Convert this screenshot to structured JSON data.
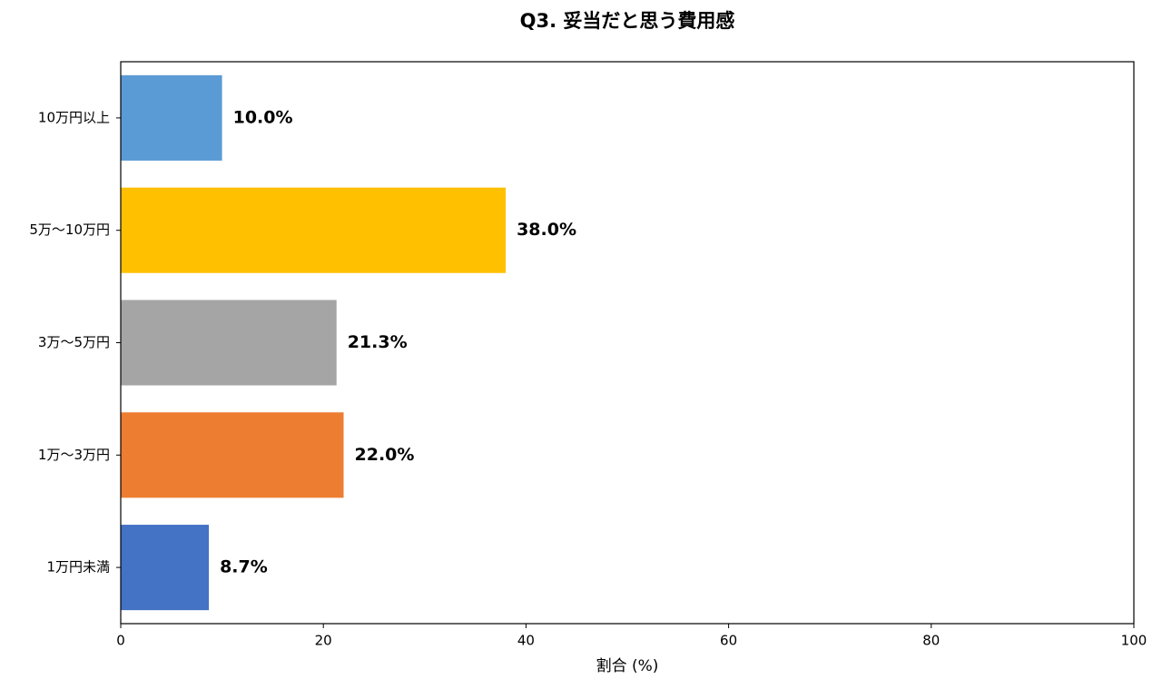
{
  "chart_data": {
    "type": "barh",
    "title": "Q3. 妥当だと思う費用感",
    "categories": [
      "10万円以上",
      "5万〜10万円",
      "3万〜5万円",
      "1万〜3万円",
      "1万円未満"
    ],
    "values": [
      10.0,
      38.0,
      21.3,
      22.0,
      8.7
    ],
    "value_labels": [
      "10.0%",
      "38.0%",
      "21.3%",
      "22.0%",
      "8.7%"
    ],
    "colors": [
      "#5b9bd5",
      "#ffc000",
      "#a5a5a5",
      "#ed7d31",
      "#4472c4"
    ],
    "xlabel": "割合 (%)",
    "xlim": [
      0,
      100
    ],
    "xticks": [
      0,
      20,
      40,
      60,
      80,
      100
    ]
  }
}
